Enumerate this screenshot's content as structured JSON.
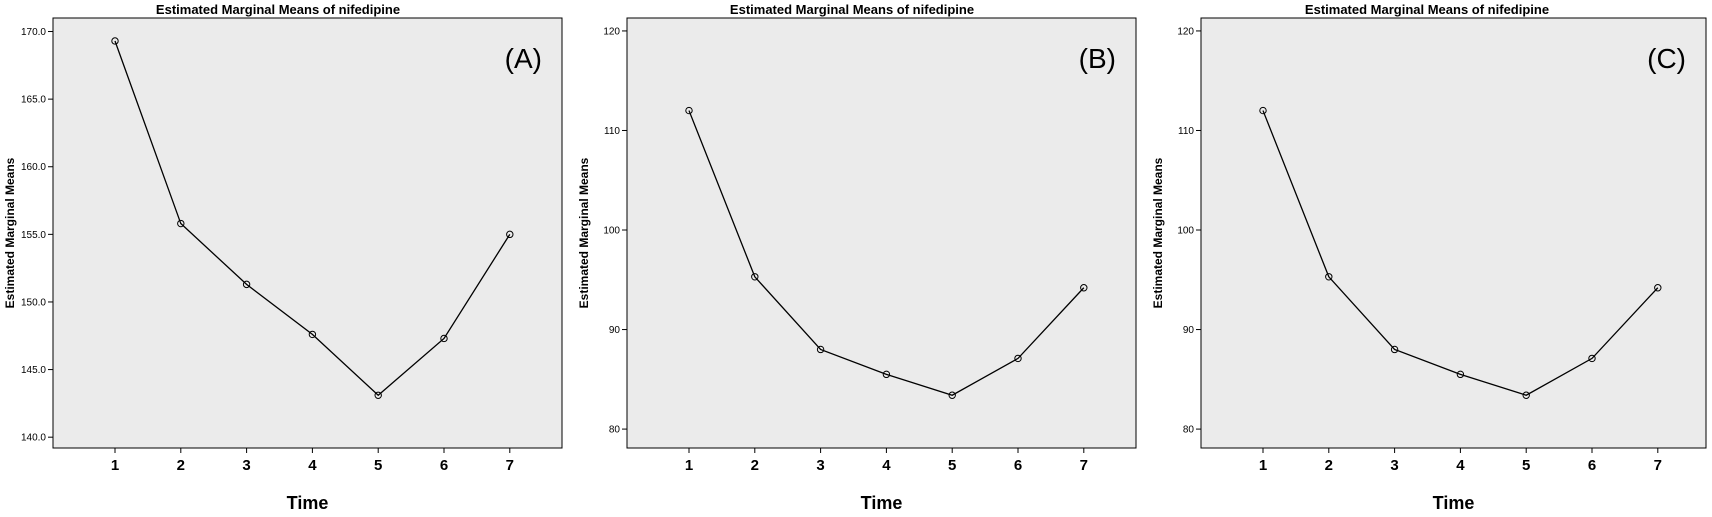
{
  "chart_data": [
    {
      "type": "line",
      "title": "Estimated Marginal Means of nifedipine",
      "panel_label": "(A)",
      "xlabel": "Time",
      "ylabel": "Estimated Marginal Means",
      "x": [
        1,
        2,
        3,
        4,
        5,
        6,
        7
      ],
      "values": [
        169.3,
        155.8,
        151.3,
        147.6,
        143.1,
        147.3,
        155.0
      ],
      "ylim": [
        139.2,
        171.0
      ],
      "yticks": [
        140.0,
        145.0,
        150.0,
        155.0,
        160.0,
        165.0,
        170.0
      ],
      "ytick_labels": [
        "140.0",
        "145.0",
        "150.0",
        "155.0",
        "160.0",
        "165.0",
        "170.0"
      ],
      "xtick_labels": [
        "1",
        "2",
        "3",
        "4",
        "5",
        "6",
        "7"
      ],
      "grid": false,
      "legend": "none",
      "marker": "open-circle",
      "background_color": "#ebebeb",
      "line_color": "#000000"
    },
    {
      "type": "line",
      "title": "Estimated Marginal Means of nifedipine",
      "panel_label": "(B)",
      "xlabel": "Time",
      "ylabel": "Estimated Marginal Means",
      "x": [
        1,
        2,
        3,
        4,
        5,
        6,
        7
      ],
      "values": [
        112.0,
        95.3,
        88.0,
        85.5,
        83.4,
        87.1,
        94.2
      ],
      "ylim": [
        78.1,
        121.3
      ],
      "yticks": [
        80,
        90,
        100,
        110,
        120
      ],
      "ytick_labels": [
        "80",
        "90",
        "100",
        "110",
        "120"
      ],
      "xtick_labels": [
        "1",
        "2",
        "3",
        "4",
        "5",
        "6",
        "7"
      ],
      "grid": false,
      "legend": "none",
      "marker": "open-circle",
      "background_color": "#ebebeb",
      "line_color": "#000000"
    },
    {
      "type": "line",
      "title": "Estimated Marginal Means of nifedipine",
      "panel_label": "(C)",
      "xlabel": "Time",
      "ylabel": "Estimated Marginal Means",
      "x": [
        1,
        2,
        3,
        4,
        5,
        6,
        7
      ],
      "values": [
        112.0,
        95.3,
        88.0,
        85.5,
        83.4,
        87.1,
        94.2
      ],
      "ylim": [
        78.1,
        121.3
      ],
      "yticks": [
        80,
        90,
        100,
        110,
        120
      ],
      "ytick_labels": [
        "80",
        "90",
        "100",
        "110",
        "120"
      ],
      "xtick_labels": [
        "1",
        "2",
        "3",
        "4",
        "5",
        "6",
        "7"
      ],
      "grid": false,
      "legend": "none",
      "marker": "open-circle",
      "background_color": "#ebebeb",
      "line_color": "#000000"
    }
  ]
}
